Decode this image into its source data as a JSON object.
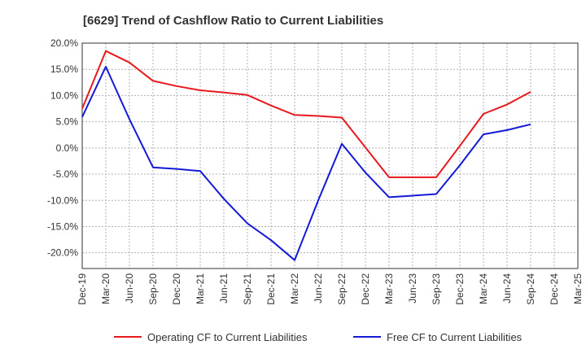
{
  "chart_data": {
    "type": "line",
    "title": "[6629]  Trend of Cashflow Ratio to Current Liabilities",
    "xlabel": "",
    "ylabel": "",
    "categories": [
      "Dec-19",
      "Mar-20",
      "Jun-20",
      "Sep-20",
      "Dec-20",
      "Mar-21",
      "Jun-21",
      "Sep-21",
      "Dec-21",
      "Mar-22",
      "Jun-22",
      "Sep-22",
      "Dec-22",
      "Mar-23",
      "Jun-23",
      "Sep-23",
      "Dec-23",
      "Mar-24",
      "Jun-24",
      "Sep-24",
      "Dec-24",
      "Mar-25"
    ],
    "ylim": [
      -23,
      20
    ],
    "yticks": [
      20,
      15,
      10,
      5,
      0,
      -5,
      -10,
      -15,
      -20
    ],
    "ytick_labels": [
      "20.0%",
      "15.0%",
      "10.0%",
      "5.0%",
      "0.0%",
      "-5.0%",
      "-10.0%",
      "-15.0%",
      "-20.0%"
    ],
    "grid": true,
    "legend_position": "bottom",
    "series": [
      {
        "name": "Operating CF to Current Liabilities",
        "color": "#e8191c",
        "values": [
          7.5,
          18.5,
          16.3,
          12.8,
          11.8,
          11.0,
          10.6,
          10.1,
          8.1,
          6.3,
          6.1,
          5.8,
          0.1,
          -5.6,
          -5.6,
          -5.6,
          0.4,
          6.5,
          8.3,
          10.7,
          null,
          null
        ]
      },
      {
        "name": "Free CF to Current Liabilities",
        "color": "#1419d8",
        "values": [
          5.9,
          15.5,
          5.5,
          -3.7,
          -4.0,
          -4.4,
          -9.7,
          -14.4,
          -17.6,
          -21.4,
          -10.0,
          0.8,
          -4.7,
          -9.4,
          -9.1,
          -8.8,
          -3.3,
          2.6,
          3.4,
          4.5,
          null,
          null
        ]
      }
    ]
  }
}
